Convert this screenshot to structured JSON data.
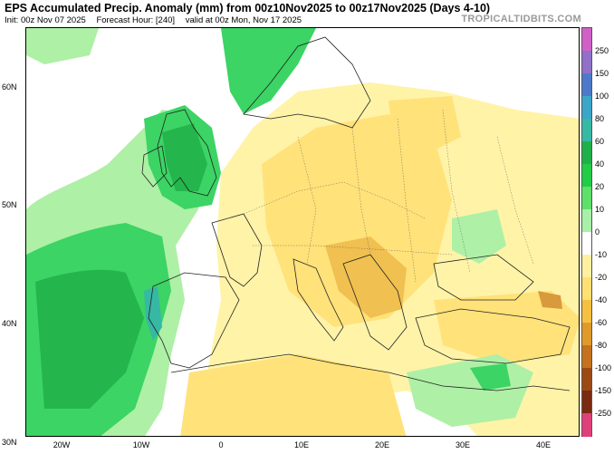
{
  "header": {
    "title": "EPS Accumulated Precip. Anomaly (mm) from 00z10Nov2025 to 00z17Nov2025 (Days 4-10)",
    "init": "Init: 00z Nov 07 2025",
    "forecast_hour": "Forecast Hour: [240]",
    "valid": "valid at 00z Mon, Nov 17 2025",
    "watermark": "TROPICALTIDBITS.COM"
  },
  "axes": {
    "lat_labels": [
      "60N",
      "50N",
      "40N",
      "30N"
    ],
    "lon_labels": [
      "20W",
      "10W",
      "0",
      "10E",
      "20E",
      "30E",
      "40E"
    ]
  },
  "colorbar": {
    "labels": [
      "250",
      "150",
      "100",
      "80",
      "60",
      "40",
      "20",
      "10",
      "0",
      "-10",
      "-20",
      "-40",
      "-60",
      "-80",
      "-100",
      "-150",
      "-250"
    ],
    "colors": [
      "#d060c8",
      "#9070c8",
      "#4c7ac8",
      "#3aa6c8",
      "#36b8a4",
      "#20b04a",
      "#22cc46",
      "#5ee06a",
      "#a8f0a8",
      "#ffffff",
      "#fff0a0",
      "#ffe070",
      "#f6c040",
      "#e09a2a",
      "#c4721e",
      "#9c4a14",
      "#7a2a10",
      "#e0407a"
    ]
  },
  "colors": {
    "positive_light": "#aef0a6",
    "positive_mid": "#3cd464",
    "positive_strong": "#24b64c",
    "negative_light": "#fff3a8",
    "negative_mid": "#ffe27a",
    "negative_strong": "#f0c050",
    "negative_extreme": "#d89a3c",
    "land_border": "#222222"
  }
}
